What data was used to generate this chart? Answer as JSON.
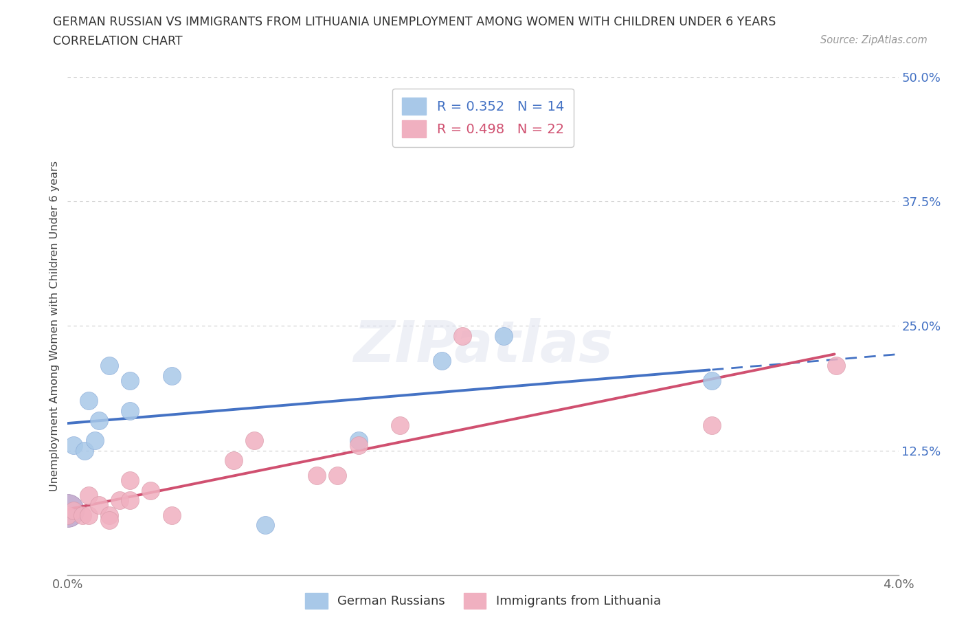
{
  "title_line1": "GERMAN RUSSIAN VS IMMIGRANTS FROM LITHUANIA UNEMPLOYMENT AMONG WOMEN WITH CHILDREN UNDER 6 YEARS",
  "title_line2": "CORRELATION CHART",
  "source_text": "Source: ZipAtlas.com",
  "ylabel": "Unemployment Among Women with Children Under 6 years",
  "xlim": [
    0.0,
    0.04
  ],
  "ylim": [
    0.0,
    0.5
  ],
  "xticks": [
    0.0,
    0.005,
    0.01,
    0.015,
    0.02,
    0.025,
    0.03,
    0.035,
    0.04
  ],
  "xticklabels": [
    "0.0%",
    "",
    "",
    "",
    "",
    "",
    "",
    "",
    "4.0%"
  ],
  "ytick_positions": [
    0.0,
    0.125,
    0.25,
    0.375,
    0.5
  ],
  "ytick_labels": [
    "",
    "12.5%",
    "25.0%",
    "37.5%",
    "50.0%"
  ],
  "grid_color": "#cccccc",
  "background_color": "#ffffff",
  "german_russian_color": "#a8c8e8",
  "lithuania_color": "#f0b0c0",
  "german_russian_line_color": "#4472c4",
  "lithuania_line_color": "#d05070",
  "R_german": 0.352,
  "N_german": 14,
  "R_lithuania": 0.498,
  "N_lithuania": 22,
  "german_russian_x": [
    0.0003,
    0.0008,
    0.001,
    0.0013,
    0.0015,
    0.002,
    0.003,
    0.003,
    0.005,
    0.0095,
    0.014,
    0.018,
    0.021,
    0.031
  ],
  "german_russian_y": [
    0.13,
    0.125,
    0.175,
    0.135,
    0.155,
    0.21,
    0.195,
    0.165,
    0.2,
    0.05,
    0.135,
    0.215,
    0.24,
    0.195
  ],
  "lithuania_x": [
    0.0,
    0.0003,
    0.0007,
    0.001,
    0.001,
    0.0015,
    0.002,
    0.002,
    0.0025,
    0.003,
    0.003,
    0.004,
    0.005,
    0.008,
    0.009,
    0.012,
    0.013,
    0.014,
    0.016,
    0.019,
    0.031,
    0.037
  ],
  "lithuania_y": [
    0.06,
    0.065,
    0.06,
    0.08,
    0.06,
    0.07,
    0.06,
    0.055,
    0.075,
    0.095,
    0.075,
    0.085,
    0.06,
    0.115,
    0.135,
    0.1,
    0.1,
    0.13,
    0.15,
    0.24,
    0.15,
    0.21
  ],
  "legend_box_color": "#ffffff",
  "legend_border_color": "#bbbbbb",
  "ytick_color": "#4472c4"
}
